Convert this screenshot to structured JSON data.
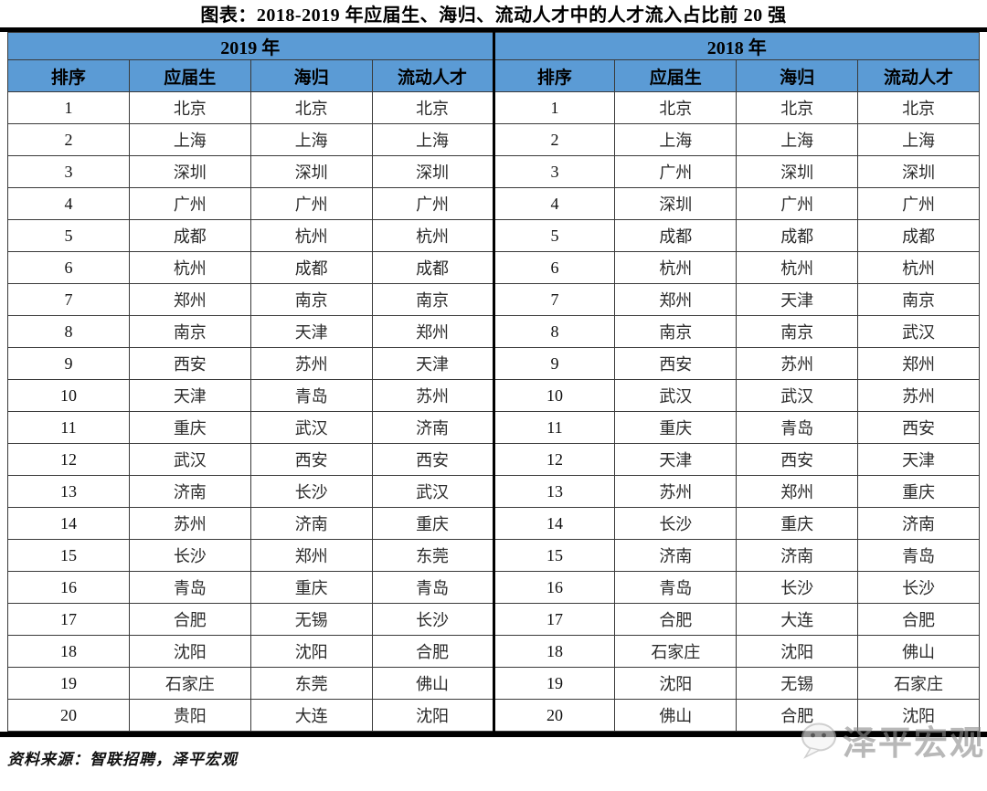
{
  "title": "图表：2018-2019 年应届生、海归、流动人才中的人才流入占比前 20 强",
  "source_note": "资料来源：智联招聘，泽平宏观",
  "watermark": {
    "icon": "wechat-bubble-icon",
    "text": "泽平宏观"
  },
  "colors": {
    "header_bg": "#5B9BD5",
    "rule_black": "#000000",
    "cell_border": "#3a3a3a",
    "watermark_grey": "#8d8d8d"
  },
  "chart_data": {
    "type": "table",
    "title": "图表：2018-2019 年应届生、海归、流动人才中的人才流入占比前 20 强",
    "column_groups": [
      "2019 年",
      "2018 年"
    ],
    "columns": [
      "排序",
      "应届生",
      "海归",
      "流动人才",
      "排序",
      "应届生",
      "海归",
      "流动人才"
    ],
    "rows": [
      [
        "1",
        "北京",
        "北京",
        "北京",
        "1",
        "北京",
        "北京",
        "北京"
      ],
      [
        "2",
        "上海",
        "上海",
        "上海",
        "2",
        "上海",
        "上海",
        "上海"
      ],
      [
        "3",
        "深圳",
        "深圳",
        "深圳",
        "3",
        "广州",
        "深圳",
        "深圳"
      ],
      [
        "4",
        "广州",
        "广州",
        "广州",
        "4",
        "深圳",
        "广州",
        "广州"
      ],
      [
        "5",
        "成都",
        "杭州",
        "杭州",
        "5",
        "成都",
        "成都",
        "成都"
      ],
      [
        "6",
        "杭州",
        "成都",
        "成都",
        "6",
        "杭州",
        "杭州",
        "杭州"
      ],
      [
        "7",
        "郑州",
        "南京",
        "南京",
        "7",
        "郑州",
        "天津",
        "南京"
      ],
      [
        "8",
        "南京",
        "天津",
        "郑州",
        "8",
        "南京",
        "南京",
        "武汉"
      ],
      [
        "9",
        "西安",
        "苏州",
        "天津",
        "9",
        "西安",
        "苏州",
        "郑州"
      ],
      [
        "10",
        "天津",
        "青岛",
        "苏州",
        "10",
        "武汉",
        "武汉",
        "苏州"
      ],
      [
        "11",
        "重庆",
        "武汉",
        "济南",
        "11",
        "重庆",
        "青岛",
        "西安"
      ],
      [
        "12",
        "武汉",
        "西安",
        "西安",
        "12",
        "天津",
        "西安",
        "天津"
      ],
      [
        "13",
        "济南",
        "长沙",
        "武汉",
        "13",
        "苏州",
        "郑州",
        "重庆"
      ],
      [
        "14",
        "苏州",
        "济南",
        "重庆",
        "14",
        "长沙",
        "重庆",
        "济南"
      ],
      [
        "15",
        "长沙",
        "郑州",
        "东莞",
        "15",
        "济南",
        "济南",
        "青岛"
      ],
      [
        "16",
        "青岛",
        "重庆",
        "青岛",
        "16",
        "青岛",
        "长沙",
        "长沙"
      ],
      [
        "17",
        "合肥",
        "无锡",
        "长沙",
        "17",
        "合肥",
        "大连",
        "合肥"
      ],
      [
        "18",
        "沈阳",
        "沈阳",
        "合肥",
        "18",
        "石家庄",
        "沈阳",
        "佛山"
      ],
      [
        "19",
        "石家庄",
        "东莞",
        "佛山",
        "19",
        "沈阳",
        "无锡",
        "石家庄"
      ],
      [
        "20",
        "贵阳",
        "大连",
        "沈阳",
        "20",
        "佛山",
        "合肥",
        "沈阳"
      ]
    ]
  }
}
